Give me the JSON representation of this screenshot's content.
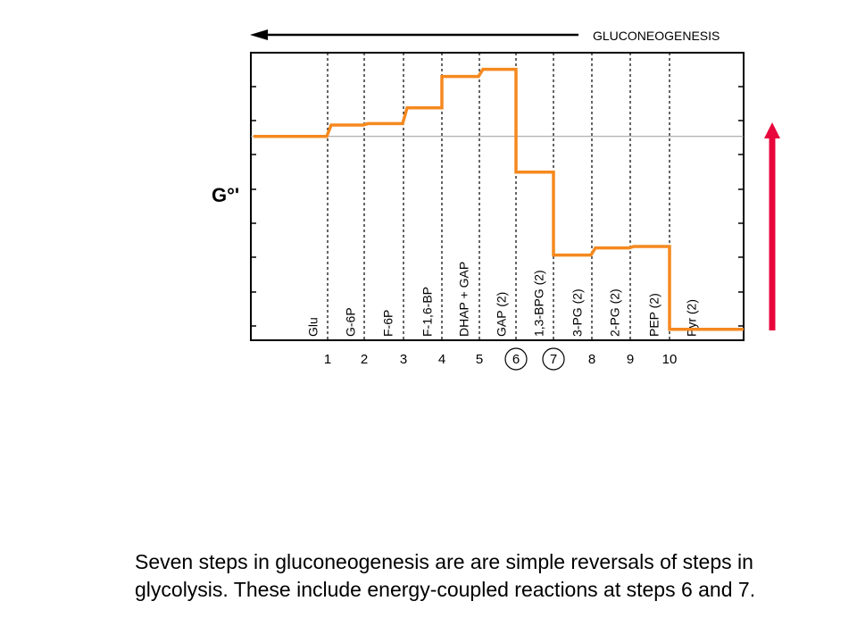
{
  "header": {
    "direction_label": "GLUCONEOGENESIS"
  },
  "chart_data": {
    "type": "line",
    "ylabel": "G°'",
    "grid": false,
    "species": [
      "Glu",
      "G-6P",
      "F-6P",
      "F-1,6-BP",
      "DHAP + GAP",
      "GAP (2)",
      "1,3-BPG (2)",
      "3-PG (2)",
      "2-PG (2)",
      "PEP (2)",
      "Pyr (2)"
    ],
    "steps": [
      {
        "label": "1",
        "circled": false
      },
      {
        "label": "2",
        "circled": false
      },
      {
        "label": "3",
        "circled": false
      },
      {
        "label": "4",
        "circled": false
      },
      {
        "label": "5",
        "circled": false
      },
      {
        "label": "6",
        "circled": true
      },
      {
        "label": "7",
        "circled": true
      },
      {
        "label": "8",
        "circled": false
      },
      {
        "label": "9",
        "circled": false
      },
      {
        "label": "10",
        "circled": false
      }
    ],
    "relative_energy": [
      0.71,
      0.75,
      0.755,
      0.81,
      0.92,
      0.945,
      0.585,
      0.295,
      0.32,
      0.325,
      0.035
    ],
    "reference_level": 0.71,
    "colors": {
      "line": "#f5891f",
      "arrow": "#e8063c",
      "reference": "#999999"
    }
  },
  "caption": {
    "line1": "Seven steps in gluconeogenesis are are simple reversals of steps in",
    "line2": "glycolysis. These include energy-coupled reactions at steps 6 and 7."
  }
}
